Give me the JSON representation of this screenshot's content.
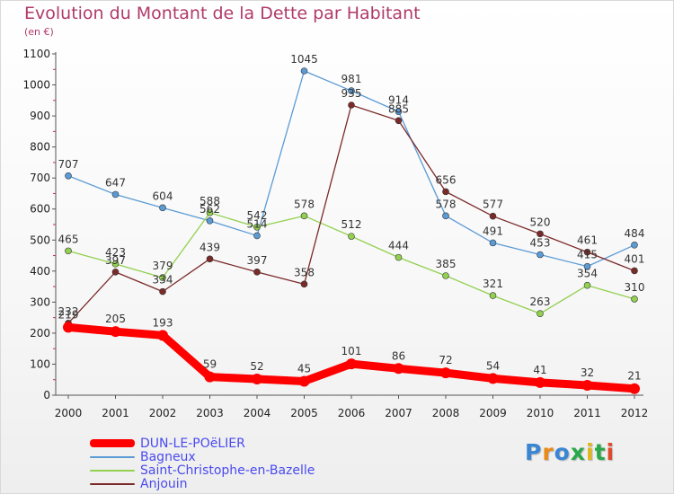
{
  "title": "Evolution du Montant de la Dette par Habitant",
  "subtitle": "(en €)",
  "brand": {
    "text": "Proxiti",
    "letter_colors": [
      "#3a86d4",
      "#e98a1b",
      "#3a86d4",
      "#2aa84a",
      "#e0b61c",
      "#2aa84a",
      "#e04a2a"
    ]
  },
  "chart_data": {
    "type": "line",
    "title": "Evolution du Montant de la Dette par Habitant",
    "subtitle": "(en €)",
    "x": [
      "2000",
      "2001",
      "2002",
      "2003",
      "2004",
      "2005",
      "2006",
      "2007",
      "2008",
      "2009",
      "2010",
      "2011",
      "2012"
    ],
    "ylim": [
      0,
      1100
    ],
    "yticks": [
      "0",
      "100",
      "200",
      "300",
      "400",
      "500",
      "600",
      "700",
      "800",
      "900",
      "1000",
      "1100"
    ],
    "grid": false,
    "legend_position": "bottom-left",
    "series": [
      {
        "name": "DUN-LE-POëLIER",
        "color": "#ff0000",
        "emphasis": true,
        "values": [
          219,
          205,
          193,
          59,
          52,
          45,
          101,
          86,
          72,
          54,
          41,
          32,
          21
        ],
        "labels": [
          "219",
          "205",
          "193",
          "59",
          "52",
          "45",
          "101",
          "86",
          "72",
          "54",
          "41",
          "32",
          "21"
        ]
      },
      {
        "name": "Bagneux",
        "color": "#5b9bd5",
        "emphasis": false,
        "values": [
          707,
          647,
          604,
          562,
          514,
          1045,
          981,
          914,
          578,
          491,
          453,
          415,
          484
        ],
        "labels": [
          "707",
          "647",
          "604",
          "562",
          "514",
          "1045",
          "981",
          "914",
          "578",
          "491",
          "453",
          "415",
          "484"
        ]
      },
      {
        "name": "Saint-Christophe-en-Bazelle",
        "color": "#92d050",
        "emphasis": false,
        "values": [
          465,
          423,
          379,
          588,
          542,
          578,
          512,
          444,
          385,
          321,
          263,
          354,
          310
        ],
        "labels": [
          "465",
          "423",
          "379",
          "588",
          "542",
          "578",
          "512",
          "444",
          "385",
          "321",
          "263",
          "354",
          "310"
        ]
      },
      {
        "name": "Anjouin",
        "color": "#7b2a2a",
        "emphasis": false,
        "values": [
          232,
          397,
          334,
          439,
          397,
          358,
          935,
          885,
          656,
          577,
          520,
          461,
          401
        ],
        "labels": [
          "232",
          "397",
          "334",
          "439",
          "397",
          "358",
          "935",
          "885",
          "656",
          "577",
          "520",
          "461",
          "401"
        ]
      }
    ]
  }
}
